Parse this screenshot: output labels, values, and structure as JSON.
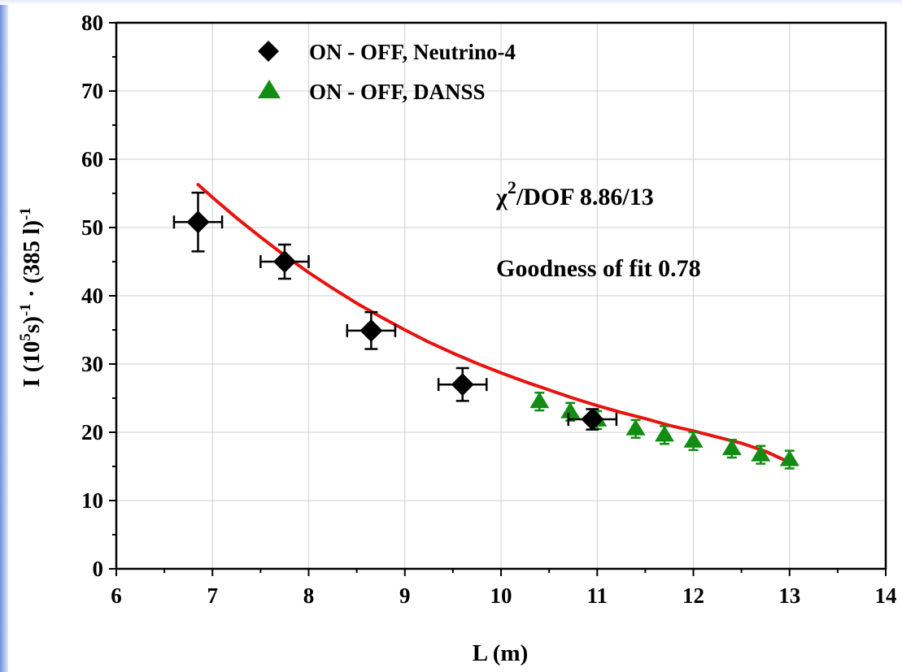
{
  "chart_data": {
    "type": "scatter",
    "xlabel": "L (m)",
    "ylabel": {
      "parts": [
        {
          "t": "I (10"
        },
        {
          "t": "5",
          "sup": true
        },
        {
          "t": "s)"
        },
        {
          "t": "-1",
          "sup": true
        },
        {
          "t": " · (385 l)"
        },
        {
          "t": "-1",
          "sup": true
        }
      ]
    },
    "xlim": [
      6,
      14
    ],
    "ylim": [
      0,
      80
    ],
    "x_ticks": [
      "6",
      "7",
      "8",
      "9",
      "10",
      "11",
      "12",
      "13",
      "14"
    ],
    "y_ticks": [
      "0",
      "10",
      "20",
      "30",
      "40",
      "50",
      "60",
      "70",
      "80"
    ],
    "grid": true,
    "legend_position": "top-left",
    "series": [
      {
        "name": "ON - OFF, Neutrino-4",
        "marker": "diamond",
        "color": "#000000",
        "points": [
          {
            "x": 6.85,
            "y": 50.8,
            "xerr": 0.25,
            "yerr": 4.3
          },
          {
            "x": 7.75,
            "y": 45.0,
            "xerr": 0.25,
            "yerr": 2.5
          },
          {
            "x": 8.65,
            "y": 34.9,
            "xerr": 0.25,
            "yerr": 2.7
          },
          {
            "x": 9.6,
            "y": 27.0,
            "xerr": 0.25,
            "yerr": 2.4
          },
          {
            "x": 10.95,
            "y": 21.9,
            "xerr": 0.25,
            "yerr": 1.5
          }
        ]
      },
      {
        "name": "ON - OFF, DANSS",
        "marker": "triangle",
        "color": "#138c13",
        "points": [
          {
            "x": 10.4,
            "y": 24.5,
            "yerr": 1.3
          },
          {
            "x": 10.72,
            "y": 23.0,
            "yerr": 1.3
          },
          {
            "x": 11.0,
            "y": 21.8,
            "yerr": 1.3
          },
          {
            "x": 11.4,
            "y": 20.5,
            "yerr": 1.3
          },
          {
            "x": 11.7,
            "y": 19.6,
            "yerr": 1.3
          },
          {
            "x": 12.0,
            "y": 18.7,
            "yerr": 1.3
          },
          {
            "x": 12.4,
            "y": 17.6,
            "yerr": 1.3
          },
          {
            "x": 12.7,
            "y": 16.7,
            "yerr": 1.3
          },
          {
            "x": 13.0,
            "y": 16.0,
            "yerr": 1.3
          }
        ]
      }
    ],
    "fit_curve": {
      "color": "#e8130f",
      "x_range": [
        6.85,
        13.0
      ],
      "points": [
        [
          6.85,
          56.3
        ],
        [
          7.0,
          54.4
        ],
        [
          7.25,
          51.4
        ],
        [
          7.5,
          48.6
        ],
        [
          7.75,
          45.9
        ],
        [
          8.0,
          43.4
        ],
        [
          8.25,
          41.1
        ],
        [
          8.5,
          38.9
        ],
        [
          8.75,
          36.9
        ],
        [
          9.0,
          35.0
        ],
        [
          9.25,
          33.2
        ],
        [
          9.5,
          31.6
        ],
        [
          9.75,
          30.1
        ],
        [
          10.0,
          28.7
        ],
        [
          10.25,
          27.4
        ],
        [
          10.5,
          26.2
        ],
        [
          10.75,
          25.0
        ],
        [
          11.0,
          23.9
        ],
        [
          11.25,
          22.9
        ],
        [
          11.5,
          22.0
        ],
        [
          11.75,
          21.0
        ],
        [
          12.0,
          20.2
        ],
        [
          12.25,
          19.3
        ],
        [
          12.5,
          18.4
        ],
        [
          12.75,
          17.2
        ],
        [
          13.0,
          15.6
        ]
      ]
    },
    "annotations": {
      "chi2": {
        "chi": "χ",
        "exp": "2",
        "rest": "/DOF 8.86/13"
      },
      "goodness": "Goodness of fit 0.78"
    }
  }
}
